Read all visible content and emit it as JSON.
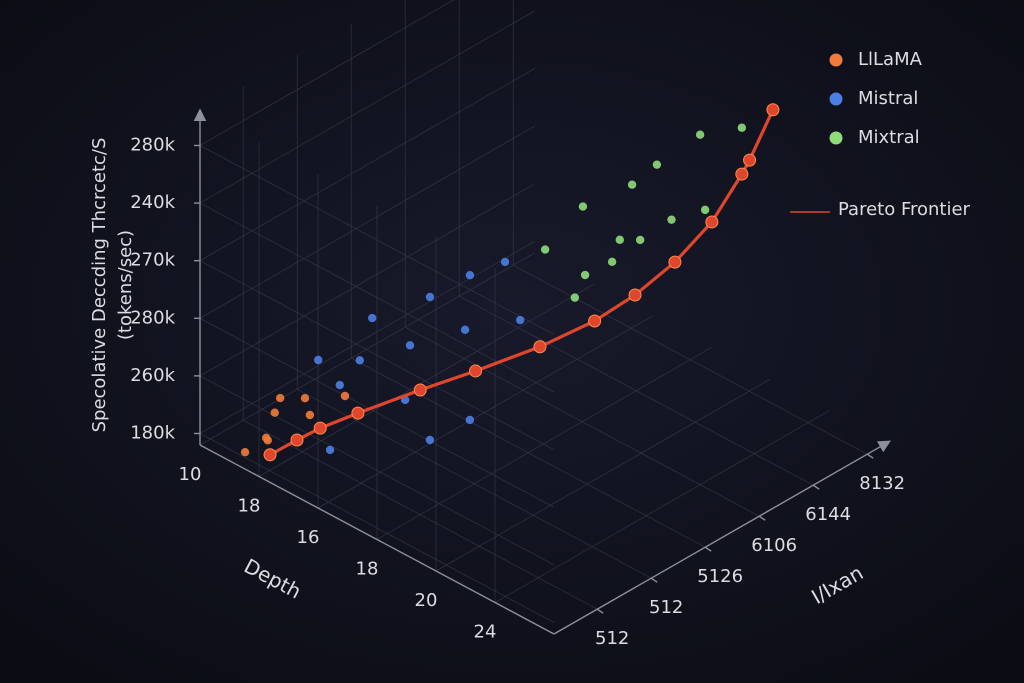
{
  "chart_data": {
    "type": "scatter3d",
    "z_label": [
      "Specolative Deccding Thcrcetc/S",
      "(tokens/sec)"
    ],
    "x_label": "Depth",
    "y_label": "I/Ixan",
    "xcategories": [
      "10",
      "18",
      "16",
      "18",
      "20",
      "24"
    ],
    "ycategories": [
      "512",
      "512",
      "5126",
      "6106",
      "6144",
      "8132"
    ],
    "zcategories": [
      "180k",
      "260k",
      "280k",
      "270k",
      "240k",
      "280k"
    ],
    "xlim": [
      0,
      6
    ],
    "ylim": [
      0,
      6.2
    ],
    "zlim": [
      0,
      5.8
    ],
    "grid": true,
    "legend": "upper right",
    "series": [
      {
        "name": "LlLaMA",
        "color": "#f27b3c",
        "marker": "dot",
        "x": [
          0.7,
          0.7,
          0.7,
          0.7,
          0.7,
          0.7,
          0.7,
          0.7
        ],
        "y": [
          0.07,
          0.46,
          0.72,
          0.62,
          1.27,
          1.92,
          0.49,
          1.18
        ],
        "z": [
          0.02,
          0.06,
          0.61,
          0.41,
          0.02,
          0,
          0,
          0.36
        ]
      },
      {
        "name": "Mistral",
        "color": "#4b7fe3",
        "marker": "dot",
        "x": [
          1.5,
          1.5,
          1.5,
          1.5,
          1.5,
          1.5,
          1.5,
          1.5,
          1.5,
          1.5,
          1.5,
          3,
          3,
          1.5
        ],
        "y": [
          1.55,
          2.62,
          3.36,
          4.01,
          4.29,
          3.27,
          2.25,
          1.32,
          0.55,
          0.95,
          2.16,
          1.72,
          0.98,
          0.77
        ],
        "z": [
          1.99,
          1.78,
          1.76,
          1.64,
          0.48,
          0.86,
          1.14,
          1.38,
          1.8,
          1.15,
          0.24,
          0.95,
          1.0,
          0.12
        ]
      },
      {
        "name": "Mixtral",
        "color": "#8fdc7a",
        "marker": "dot",
        "x": [
          2.5,
          2.5,
          2.5,
          2.5,
          3.5,
          3.5,
          2.5,
          2.5,
          2.5,
          2.5,
          2.5,
          2.5,
          3.5
        ],
        "y": [
          4.36,
          5.27,
          5.73,
          6.53,
          6.21,
          5.53,
          6.0,
          5.42,
          4.9,
          4.4,
          3.66,
          4.21,
          3.95
        ],
        "z": [
          2.96,
          2.85,
          2.95,
          3.04,
          3.88,
          2.82,
          1.85,
          1.81,
          1.71,
          1.75,
          2.59,
          1.46,
          3.15
        ]
      },
      {
        "name": "Pareto Frontier",
        "color": "#e0462c",
        "marker": "line",
        "x": [
          0.94,
          1.04,
          1.15,
          1.34,
          1.71,
          2.08,
          2.54,
          2.89,
          3.2,
          3.4,
          3.55,
          3.61,
          3.64,
          3.78
        ],
        "y": [
          0.27,
          0.66,
          0.97,
          1.46,
          2.21,
          2.83,
          3.52,
          4.15,
          4.56,
          5.08,
          5.6,
          6.09,
          6.2,
          6.48
        ],
        "z": [
          0,
          0.1,
          0.2,
          0.3,
          0.5,
          0.7,
          1.0,
          1.3,
          1.7,
          2.1,
          2.6,
          3.2,
          3.4,
          4.2
        ]
      }
    ]
  }
}
